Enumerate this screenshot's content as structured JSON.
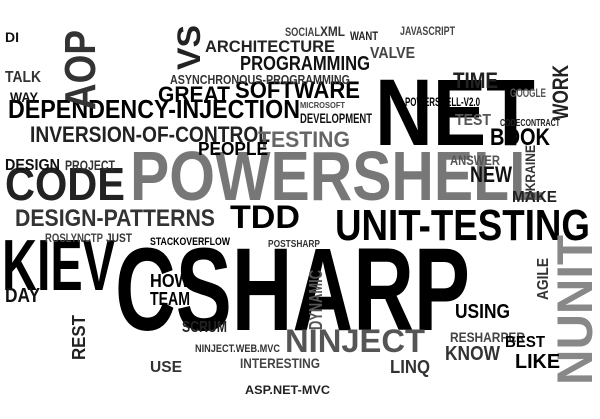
{
  "words": [
    "CSHARP",
    "POWERSHELL",
    "NET",
    "KIEV",
    "UNIT-TESTING",
    "CODE",
    "DEPENDENCY-INJECTION",
    "INVERSION-OF-CONTROL",
    "DESIGN-PATTERNS",
    "TDD",
    "NINJECT",
    "NUNIT",
    "AOP",
    "VS",
    "SOFTWARE",
    "PROGRAMMING",
    "ARCHITECTURE",
    "ASYNCHRONOUS-PROGRAMMING",
    "GREAT",
    "TIME",
    "TESTING",
    "PEOPLE",
    "BOOK",
    "NEW",
    "MAKE",
    "WORK",
    "JAVASCRIPT",
    "VALVE",
    "USING",
    "RESHARPER",
    "KNOW",
    "BEST",
    "LIKE",
    "LINQ",
    "SCRUM",
    "TEAM",
    "HOW",
    "ASP.NET-MVC",
    "INTERESTING",
    "NINJECT.WEB.MVC",
    "STACKOVERFLOW",
    "POSTSHARP",
    "DEVELOPMENT",
    "POWERSHELL-V2.0",
    "PROJECT",
    "DESIGN",
    "DAY",
    "REST",
    "USE",
    "AGILE",
    "ANSWER",
    "TEST",
    "DYNAMIC",
    "ROSLYNCTP",
    "JUST",
    "CODECONTRACT",
    "GOOGLE",
    "SOCIAL",
    "XML",
    "WANT",
    "DI",
    "TALK",
    "WAY",
    "MICROSOFT",
    "UKRAINE"
  ]
}
